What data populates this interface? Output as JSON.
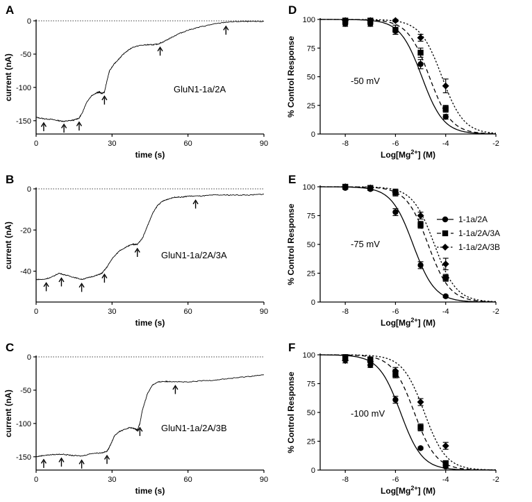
{
  "chart_data": [
    {
      "panel": "A",
      "type": "line",
      "xlabel": "time (s)",
      "ylabel": "current (nA)",
      "xlim": [
        0,
        90
      ],
      "ylim": [
        -170,
        0
      ],
      "xticks": [
        0,
        30,
        60,
        90
      ],
      "yticks": [
        0,
        -50,
        -100,
        -150
      ],
      "annotation": "GluN1-1a/2A",
      "trace": {
        "x": [
          0,
          3,
          6,
          9,
          11,
          13,
          15,
          17,
          18,
          20,
          22,
          24,
          25,
          26,
          27,
          28,
          29,
          31,
          33,
          35,
          38,
          41,
          44,
          46,
          48,
          50,
          53,
          56,
          60,
          65,
          70,
          75,
          80,
          85,
          90
        ],
        "y": [
          -145,
          -147,
          -148,
          -150,
          -151,
          -150,
          -149,
          -146,
          -140,
          -122,
          -112,
          -108,
          -107,
          -109,
          -107,
          -90,
          -75,
          -64,
          -56,
          -48,
          -40,
          -37,
          -36,
          -36,
          -35,
          -32,
          -26,
          -20,
          -14,
          -9,
          -5,
          -2,
          -1,
          -1,
          -1
        ]
      },
      "arrows_x": [
        3,
        11,
        17,
        27,
        49,
        75
      ]
    },
    {
      "panel": "B",
      "type": "line",
      "xlabel": "time (s)",
      "ylabel": "current (nA)",
      "xlim": [
        0,
        90
      ],
      "ylim": [
        -55,
        0
      ],
      "xticks": [
        0,
        30,
        60,
        90
      ],
      "yticks": [
        0,
        -20,
        -40
      ],
      "annotation": "GluN1-1a/2A/3A",
      "trace": {
        "x": [
          0,
          3,
          6,
          9,
          12,
          15,
          18,
          21,
          24,
          26,
          28,
          30,
          33,
          36,
          38,
          39,
          40,
          42,
          44,
          46,
          48,
          50,
          52,
          55,
          58,
          60,
          65,
          70,
          75,
          80,
          85,
          90
        ],
        "y": [
          -44,
          -44,
          -43,
          -41,
          -42,
          -43,
          -44,
          -43,
          -42,
          -41,
          -38,
          -34,
          -30,
          -28,
          -27,
          -27,
          -27,
          -24,
          -18,
          -12,
          -8,
          -6,
          -5,
          -4,
          -4,
          -3.5,
          -3.5,
          -3,
          -3,
          -3,
          -3,
          -2.5
        ]
      },
      "arrows_x": [
        4,
        10,
        18,
        27,
        40,
        63
      ]
    },
    {
      "panel": "C",
      "type": "line",
      "xlabel": "time (s)",
      "ylabel": "current (nA)",
      "xlim": [
        0,
        90
      ],
      "ylim": [
        -170,
        0
      ],
      "xticks": [
        0,
        30,
        60,
        90
      ],
      "yticks": [
        0,
        -50,
        -100,
        -150
      ],
      "annotation": "GluN1-1a/2A/3B",
      "trace": {
        "x": [
          0,
          3,
          6,
          10,
          14,
          18,
          22,
          26,
          28,
          29,
          30,
          31,
          33,
          35,
          37,
          39,
          40,
          41,
          42,
          44,
          46,
          48,
          50,
          52,
          55,
          60,
          65,
          70,
          75,
          80,
          85,
          90
        ],
        "y": [
          -150,
          -148,
          -147,
          -146,
          -148,
          -149,
          -145,
          -144,
          -142,
          -135,
          -127,
          -118,
          -112,
          -109,
          -106,
          -108,
          -110,
          -100,
          -80,
          -55,
          -42,
          -38,
          -37,
          -37,
          -37,
          -38,
          -36,
          -35,
          -33,
          -31,
          -29,
          -27
        ]
      },
      "arrows_x": [
        3,
        10,
        18,
        28,
        41,
        55
      ]
    },
    {
      "panel": "D",
      "type": "scatter",
      "xlabel": "Log[Mg",
      "xlabel_sup": "2+",
      "xlabel_end": "] (M)",
      "ylabel": "% Control Response",
      "xlim": [
        -9,
        -2
      ],
      "ylim": [
        0,
        100
      ],
      "xticks": [
        -8,
        -6,
        -4,
        -2
      ],
      "yticks": [
        0,
        25,
        50,
        75,
        100
      ],
      "annotation": "-50 mV",
      "series": [
        {
          "name": "1-1a/2A",
          "marker": "circle",
          "dash": "solid",
          "ic50": -4.95,
          "x": [
            -8,
            -7,
            -6,
            -5,
            -4
          ],
          "y": [
            96,
            96,
            90,
            61,
            15
          ],
          "err": [
            2,
            2,
            3,
            4,
            2
          ]
        },
        {
          "name": "1-1a/2A/3A",
          "marker": "square",
          "dash": "dashed",
          "ic50": -4.65,
          "x": [
            -8,
            -7,
            -6,
            -5,
            -4
          ],
          "y": [
            99,
            99,
            91,
            71,
            22
          ],
          "err": [
            2,
            2,
            4,
            4,
            3
          ]
        },
        {
          "name": "1-1a/2A/3B",
          "marker": "diamond",
          "dash": "dotted",
          "ic50": -4.15,
          "x": [
            -8,
            -7,
            -6,
            -5,
            -4
          ],
          "y": [
            99,
            99,
            99,
            84,
            42
          ],
          "err": [
            1,
            1,
            1,
            3,
            6
          ]
        }
      ]
    },
    {
      "panel": "E",
      "type": "scatter",
      "xlabel": "Log[Mg",
      "xlabel_sup": "2+",
      "xlabel_end": "] (M)",
      "ylabel": "% Control Response",
      "xlim": [
        -9,
        -2
      ],
      "ylim": [
        0,
        100
      ],
      "xticks": [
        -8,
        -6,
        -4,
        -2
      ],
      "yticks": [
        0,
        25,
        50,
        75,
        100
      ],
      "annotation": "-75 mV",
      "legend_position": "right",
      "series": [
        {
          "name": "1-1a/2A",
          "marker": "circle",
          "dash": "solid",
          "ic50": -5.3,
          "x": [
            -8,
            -7,
            -6,
            -5,
            -4
          ],
          "y": [
            99,
            98,
            78,
            32,
            5
          ],
          "err": [
            1,
            1,
            3,
            3,
            1
          ]
        },
        {
          "name": "1-1a/2A/3A",
          "marker": "square",
          "dash": "dashed",
          "ic50": -4.7,
          "x": [
            -8,
            -7,
            -6,
            -5,
            -4
          ],
          "y": [
            100,
            99,
            95,
            67,
            21
          ],
          "err": [
            1,
            2,
            3,
            3,
            3
          ]
        },
        {
          "name": "1-1a/2A/3B",
          "marker": "diamond",
          "dash": "dotted",
          "ic50": -4.45,
          "x": [
            -8,
            -7,
            -6,
            -5,
            -4
          ],
          "y": [
            100,
            99,
            95,
            75,
            33
          ],
          "err": [
            1,
            1,
            2,
            3,
            5
          ]
        }
      ]
    },
    {
      "panel": "F",
      "type": "scatter",
      "xlabel": "Log[Mg",
      "xlabel_sup": "2+",
      "xlabel_end": "] (M)",
      "ylabel": "% Control Response",
      "xlim": [
        -9,
        -2
      ],
      "ylim": [
        0,
        100
      ],
      "xticks": [
        -8,
        -6,
        -4,
        -2
      ],
      "yticks": [
        0,
        25,
        50,
        75,
        100
      ],
      "annotation": "-100 mV",
      "series": [
        {
          "name": "1-1a/2A",
          "marker": "circle",
          "dash": "solid",
          "ic50": -5.8,
          "x": [
            -8,
            -7,
            -6,
            -5,
            -4
          ],
          "y": [
            98,
            91,
            61,
            19,
            3
          ],
          "err": [
            2,
            2,
            3,
            1,
            1
          ]
        },
        {
          "name": "1-1a/2A/3A",
          "marker": "square",
          "dash": "dashed",
          "ic50": -5.25,
          "x": [
            -8,
            -7,
            -6,
            -5,
            -4
          ],
          "y": [
            98,
            96,
            83,
            37,
            6
          ],
          "err": [
            2,
            2,
            3,
            3,
            2
          ]
        },
        {
          "name": "1-1a/2A/3B",
          "marker": "diamond",
          "dash": "dotted",
          "ic50": -4.85,
          "x": [
            -8,
            -7,
            -6,
            -5,
            -4
          ],
          "y": [
            95,
            94,
            86,
            59,
            21
          ],
          "err": [
            2,
            3,
            3,
            3,
            3
          ]
        }
      ]
    }
  ]
}
